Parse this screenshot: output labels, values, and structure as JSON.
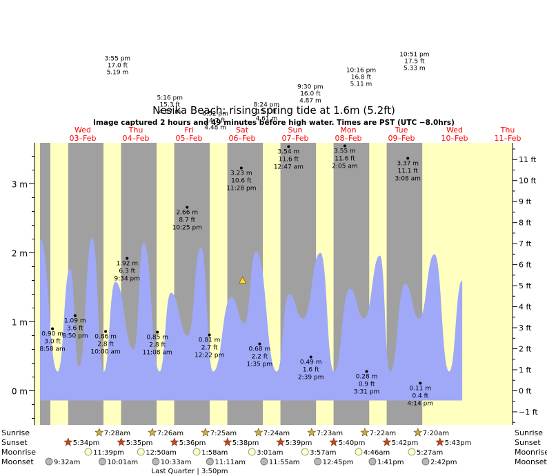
{
  "title": "Nesika Beach: rising  spring tide at 1.6m (5.2ft)",
  "subtitle": "Image captured 2 hours and 49 minutes before high water. Times are PST (UTC −8.0hrs)",
  "colors": {
    "day": "#ffffc0",
    "night": "#a0a0a0",
    "tide": "#a0a8f8",
    "red": "#ff0000",
    "sun_star": "#c8b040",
    "sunset_star": "#d04020",
    "moon": "#ffffc0",
    "moonset": "#b8b8b8"
  },
  "chart_data": {
    "type": "area",
    "xlim": [
      0,
      8.5
    ],
    "ylim": [
      -0.5,
      3.5
    ],
    "yticks_m": [
      {
        "v": 0,
        "label": "0 m"
      },
      {
        "v": 1,
        "label": "1 m"
      },
      {
        "v": 2,
        "label": "2 m"
      },
      {
        "v": 3,
        "label": "3 m"
      }
    ],
    "yticks_ft": [
      -1,
      0,
      1,
      2,
      3,
      4,
      5,
      6,
      7,
      8,
      9,
      10,
      11
    ],
    "yticks_ft_labels": [
      "−1 ft",
      "0 ft",
      "1 ft",
      "2 ft",
      "3 ft",
      "4 ft",
      "5 ft",
      "6 ft",
      "7 ft",
      "8 ft",
      "9 ft",
      "10 ft",
      "11 ft"
    ],
    "days": [
      {
        "d": "Wed",
        "date": "03–Feb"
      },
      {
        "d": "Thu",
        "date": "04–Feb"
      },
      {
        "d": "Fri",
        "date": "05–Feb"
      },
      {
        "d": "Sat",
        "date": "06–Feb"
      },
      {
        "d": "Sun",
        "date": "07–Feb"
      },
      {
        "d": "Mon",
        "date": "08–Feb"
      },
      {
        "d": "Tue",
        "date": "09–Feb"
      },
      {
        "d": "Wed",
        "date": "10–Feb"
      },
      {
        "d": "Thu",
        "date": "11–Feb"
      }
    ],
    "series_x": [
      0.0,
      0.333,
      0.567,
      0.733,
      0.983,
      1.2,
      1.417,
      1.767,
      1.95,
      2.25,
      2.464,
      2.783,
      3.03,
      3.257,
      3.605,
      3.848,
      4.067,
      4.459,
      4.689,
      4.952,
      5.28,
      5.532,
      5.832,
      6.103,
      6.4,
      6.589,
      6.875,
      7.138,
      7.426,
      7.702,
      7.95
    ],
    "series_y": [
      2.2,
      0.28,
      1.78,
      0.35,
      2.22,
      0.28,
      1.58,
      0.6,
      2.15,
      0.28,
      1.42,
      0.8,
      2.08,
      0.28,
      1.36,
      0.98,
      2.02,
      0.28,
      1.4,
      1.05,
      2.0,
      0.28,
      1.48,
      1.05,
      1.96,
      0.28,
      1.55,
      1.05,
      1.98,
      0.28,
      1.6
    ],
    "peaks": [
      {
        "x": 0.235,
        "y": 0.9,
        "lines": [
          "0.90 m",
          "3.0 ft",
          "8:58 am"
        ],
        "pos": "below"
      },
      {
        "x": 0.66,
        "y": 1.09,
        "lines": [
          "1.09 m",
          "3.6 ft",
          "8:50 pm"
        ],
        "pos": "below"
      },
      {
        "x": 1.235,
        "y": 0.86,
        "lines": [
          "0.86 m",
          "2.8 ft",
          "10:00 am"
        ],
        "pos": "below"
      },
      {
        "x": 1.64,
        "y": 1.92,
        "lines": [
          "1.92 m",
          "6.3 ft",
          "9:34 pm"
        ],
        "pos": "below"
      },
      {
        "x": 2.21,
        "y": 0.85,
        "lines": [
          "0.85 m",
          "2.8 ft",
          "11:08 am"
        ],
        "pos": "below"
      },
      {
        "x": 2.77,
        "y": 2.66,
        "lines": [
          "2.66 m",
          "8.7 ft",
          "10:25 pm"
        ],
        "pos": "below"
      },
      {
        "x": 3.19,
        "y": 0.81,
        "lines": [
          "0.81 m",
          "2.7 ft",
          "12:22 pm"
        ],
        "pos": "below"
      },
      {
        "x": 3.79,
        "y": 3.23,
        "lines": [
          "3.23 m",
          "10.6 ft",
          "11:28 pm"
        ],
        "pos": "below"
      },
      {
        "x": 4.135,
        "y": 0.68,
        "lines": [
          "0.68 m",
          "2.2 ft",
          "1:35 pm"
        ],
        "pos": "below"
      },
      {
        "x": 4.68,
        "y": 3.54,
        "lines": [
          "3.54 m",
          "11.6 ft",
          "12:47 am"
        ],
        "pos": "below"
      },
      {
        "x": 5.1,
        "y": 0.49,
        "lines": [
          "0.49 m",
          "1.6 ft",
          "2:39 pm"
        ],
        "pos": "below"
      },
      {
        "x": 5.74,
        "y": 3.55,
        "lines": [
          "3.55 m",
          "11.6 ft",
          "2:05 am"
        ],
        "pos": "below"
      },
      {
        "x": 6.15,
        "y": 0.28,
        "lines": [
          "0.28 m",
          "0.9 ft",
          "3:31 pm"
        ],
        "pos": "below"
      },
      {
        "x": 6.925,
        "y": 3.37,
        "lines": [
          "3.37 m",
          "11.1 ft",
          "3:08 am"
        ],
        "pos": "below"
      },
      {
        "x": 7.16,
        "y": 0.11,
        "lines": [
          "0.11 m",
          "0.4 ft",
          "4:14 pm"
        ],
        "pos": "below"
      }
    ],
    "offscale_highs": [
      {
        "x": 1.46,
        "y": 4.8,
        "lines": [
          "3:55 pm",
          "17.0 ft",
          "5.19 m"
        ]
      },
      {
        "x": 2.445,
        "y": 4.23,
        "lines": [
          "5:16 pm",
          "15.3 ft",
          "4.67 m"
        ]
      },
      {
        "x": 3.3,
        "y": 4.0,
        "lines": [
          "6:52 pm",
          "14.7 ft",
          "4.48 m"
        ]
      },
      {
        "x": 4.265,
        "y": 4.13,
        "lines": [
          "8:24 pm",
          "15.1 ft",
          "4.61 m"
        ]
      },
      {
        "x": 5.09,
        "y": 4.39,
        "lines": [
          "9:30 pm",
          "16.0 ft",
          "4.87 m"
        ]
      },
      {
        "x": 6.045,
        "y": 4.63,
        "lines": [
          "10:16 pm",
          "16.8 ft",
          "5.11 m"
        ]
      },
      {
        "x": 7.05,
        "y": 4.86,
        "lines": [
          "10:51 pm",
          "17.5 ft",
          "5.33 m"
        ]
      }
    ],
    "current": {
      "x": 3.815,
      "y": 1.6
    },
    "nights": [
      [
        0.0,
        0.195
      ],
      [
        0.53,
        1.195
      ],
      [
        1.527,
        2.195
      ],
      [
        2.527,
        3.195
      ],
      [
        3.527,
        4.195
      ],
      [
        4.527,
        5.197
      ],
      [
        5.527,
        6.198
      ],
      [
        6.527,
        7.197
      ]
    ]
  },
  "rows": {
    "labels": [
      "Sunrise",
      "Sunset",
      "Moonrise",
      "Moonset"
    ],
    "sunrise": [
      {
        "x": 1.205,
        "t": "7:28am"
      },
      {
        "x": 2.205,
        "t": "7:26am"
      },
      {
        "x": 3.205,
        "t": "7:25am"
      },
      {
        "x": 4.205,
        "t": "7:24am"
      },
      {
        "x": 5.205,
        "t": "7:23am"
      },
      {
        "x": 6.205,
        "t": "7:22am"
      },
      {
        "x": 7.205,
        "t": "7:20am"
      }
    ],
    "sunset": [
      {
        "x": 0.53,
        "t": "5:34pm"
      },
      {
        "x": 1.53,
        "t": "5:35pm"
      },
      {
        "x": 2.53,
        "t": "5:36pm"
      },
      {
        "x": 3.53,
        "t": "5:38pm"
      },
      {
        "x": 4.53,
        "t": "5:39pm"
      },
      {
        "x": 5.53,
        "t": "5:40pm"
      },
      {
        "x": 6.53,
        "t": "5:42pm"
      },
      {
        "x": 7.53,
        "t": "5:43pm"
      }
    ],
    "moonrise": [
      {
        "x": 1.0,
        "t": "11:39pm"
      },
      {
        "x": 1.99,
        "t": "12:50am"
      },
      {
        "x": 3.04,
        "t": "1:58am"
      },
      {
        "x": 4.08,
        "t": "3:01am"
      },
      {
        "x": 5.08,
        "t": "3:57am"
      },
      {
        "x": 6.09,
        "t": "4:46am"
      },
      {
        "x": 7.09,
        "t": "5:27am"
      }
    ],
    "moonset": [
      {
        "x": 0.26,
        "t": "9:32am"
      },
      {
        "x": 1.265,
        "t": "10:01am"
      },
      {
        "x": 2.27,
        "t": "10:33am"
      },
      {
        "x": 3.29,
        "t": "11:11am"
      },
      {
        "x": 4.31,
        "t": "11:55am"
      },
      {
        "x": 5.32,
        "t": "12:45pm"
      },
      {
        "x": 6.35,
        "t": "1:41pm"
      },
      {
        "x": 7.35,
        "t": "2:42pm"
      }
    ],
    "moon_phase": "Last Quarter | 3:50pm"
  }
}
